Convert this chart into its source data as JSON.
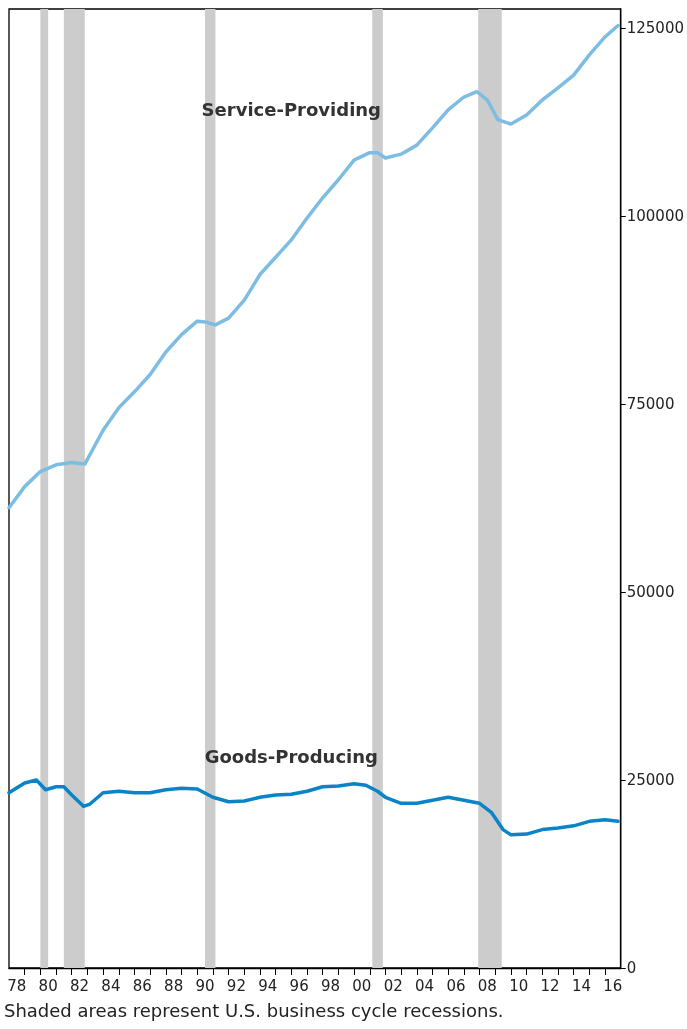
{
  "chart_data": {
    "type": "line",
    "annotations": [
      "Shaded areas represent U.S. business cycle recessions."
    ],
    "xlim": [
      "1978-01",
      "2017-01"
    ],
    "xticks": [
      {
        "value": "1978-07",
        "label": "78"
      },
      {
        "value": "1980-07",
        "label": "80"
      },
      {
        "value": "1982-07",
        "label": "82"
      },
      {
        "value": "1984-07",
        "label": "84"
      },
      {
        "value": "1986-07",
        "label": "86"
      },
      {
        "value": "1988-07",
        "label": "88"
      },
      {
        "value": "1990-07",
        "label": "90"
      },
      {
        "value": "1992-07",
        "label": "92"
      },
      {
        "value": "1994-07",
        "label": "94"
      },
      {
        "value": "1996-07",
        "label": "96"
      },
      {
        "value": "1998-07",
        "label": "98"
      },
      {
        "value": "2000-07",
        "label": "00"
      },
      {
        "value": "2002-07",
        "label": "02"
      },
      {
        "value": "2004-07",
        "label": "04"
      },
      {
        "value": "2006-07",
        "label": "06"
      },
      {
        "value": "2008-07",
        "label": "08"
      },
      {
        "value": "2010-07",
        "label": "10"
      },
      {
        "value": "2012-07",
        "label": "12"
      },
      {
        "value": "2014-07",
        "label": "14"
      },
      {
        "value": "2016-07",
        "label": "16"
      },
      {
        "value": "1979-01",
        "label": null
      },
      {
        "value": "1980-01",
        "label": null
      },
      {
        "value": "1981-01",
        "label": null
      },
      {
        "value": "1982-01",
        "label": null
      },
      {
        "value": "1983-01",
        "label": null
      },
      {
        "value": "1984-01",
        "label": null
      },
      {
        "value": "1985-01",
        "label": null
      },
      {
        "value": "1986-01",
        "label": null
      },
      {
        "value": "1987-01",
        "label": null
      },
      {
        "value": "1988-01",
        "label": null
      },
      {
        "value": "1989-01",
        "label": null
      },
      {
        "value": "1990-01",
        "label": null
      },
      {
        "value": "1991-01",
        "label": null
      },
      {
        "value": "1992-01",
        "label": null
      },
      {
        "value": "1993-01",
        "label": null
      },
      {
        "value": "1994-01",
        "label": null
      },
      {
        "value": "1995-01",
        "label": null
      },
      {
        "value": "1996-01",
        "label": null
      },
      {
        "value": "1997-01",
        "label": null
      },
      {
        "value": "1998-01",
        "label": null
      },
      {
        "value": "1999-01",
        "label": null
      },
      {
        "value": "2000-01",
        "label": null
      },
      {
        "value": "2001-01",
        "label": null
      },
      {
        "value": "2002-01",
        "label": null
      },
      {
        "value": "2003-01",
        "label": null
      },
      {
        "value": "2004-01",
        "label": null
      },
      {
        "value": "2005-01",
        "label": null
      },
      {
        "value": "2006-01",
        "label": null
      },
      {
        "value": "2007-01",
        "label": null
      },
      {
        "value": "2008-01",
        "label": null
      },
      {
        "value": "2009-01",
        "label": null
      },
      {
        "value": "2010-01",
        "label": null
      },
      {
        "value": "2011-01",
        "label": null
      },
      {
        "value": "2012-01",
        "label": null
      },
      {
        "value": "2013-01",
        "label": null
      },
      {
        "value": "2014-01",
        "label": null
      },
      {
        "value": "2015-01",
        "label": null
      },
      {
        "value": "2016-01",
        "label": null
      }
    ],
    "ylim": [
      0,
      127500
    ],
    "yticks": [
      0,
      25000,
      50000,
      75000,
      100000,
      125000
    ],
    "grid": false,
    "legend": false,
    "marker": "none",
    "line_style": "solid",
    "bands": [
      {
        "axis": "x",
        "from": "1980-01",
        "to": "1980-07",
        "color": "#cccccc"
      },
      {
        "axis": "x",
        "from": "1981-07",
        "to": "1982-11",
        "color": "#cccccc"
      },
      {
        "axis": "x",
        "from": "1990-07",
        "to": "1991-03",
        "color": "#cccccc"
      },
      {
        "axis": "x",
        "from": "2001-03",
        "to": "2001-11",
        "color": "#cccccc"
      },
      {
        "axis": "x",
        "from": "2007-12",
        "to": "2009-06",
        "color": "#cccccc"
      }
    ],
    "series": [
      {
        "name": "Service-Providing",
        "color": "#7dbde3",
        "x": [
          "1978-01",
          "1979-01",
          "1980-01",
          "1981-01",
          "1982-01",
          "1982-11",
          "1984-01",
          "1985-01",
          "1986-01",
          "1987-01",
          "1988-01",
          "1989-01",
          "1990-01",
          "1990-07",
          "1991-03",
          "1992-01",
          "1993-01",
          "1994-01",
          "1995-01",
          "1996-01",
          "1997-01",
          "1998-01",
          "1999-01",
          "2000-01",
          "2001-01",
          "2001-07",
          "2002-01",
          "2003-01",
          "2004-01",
          "2005-01",
          "2006-01",
          "2007-01",
          "2007-11",
          "2008-07",
          "2009-03",
          "2010-01",
          "2011-01",
          "2012-01",
          "2013-01",
          "2014-01",
          "2015-01",
          "2016-01",
          "2016-11"
        ],
        "values": [
          61200,
          64000,
          66000,
          66900,
          67200,
          67000,
          71500,
          74500,
          76600,
          78900,
          81900,
          84200,
          86000,
          85900,
          85500,
          86400,
          88800,
          92200,
          94500,
          96800,
          99700,
          102400,
          104800,
          107400,
          108400,
          108400,
          107700,
          108200,
          109400,
          111700,
          114100,
          115800,
          116500,
          115400,
          112800,
          112200,
          113400,
          115400,
          117000,
          118700,
          121400,
          123800,
          125300
        ]
      },
      {
        "name": "Goods-Producing",
        "color": "#0a84c6",
        "x": [
          "1978-01",
          "1979-01",
          "1979-10",
          "1980-05",
          "1981-01",
          "1981-07",
          "1982-01",
          "1982-10",
          "1983-03",
          "1984-01",
          "1985-01",
          "1986-01",
          "1987-01",
          "1988-01",
          "1989-01",
          "1990-01",
          "1991-01",
          "1992-01",
          "1993-01",
          "1994-01",
          "1995-01",
          "1996-01",
          "1997-01",
          "1998-01",
          "1999-01",
          "2000-01",
          "2000-10",
          "2001-07",
          "2002-01",
          "2003-01",
          "2004-01",
          "2005-01",
          "2006-01",
          "2007-01",
          "2008-01",
          "2008-10",
          "2009-07",
          "2010-01",
          "2011-01",
          "2012-01",
          "2013-01",
          "2014-01",
          "2015-01",
          "2016-01",
          "2016-11"
        ],
        "values": [
          23300,
          24600,
          25000,
          23700,
          24100,
          24100,
          23000,
          21500,
          21800,
          23300,
          23500,
          23300,
          23300,
          23700,
          23900,
          23800,
          22700,
          22100,
          22200,
          22700,
          23000,
          23100,
          23500,
          24100,
          24200,
          24500,
          24300,
          23500,
          22700,
          21900,
          21900,
          22300,
          22700,
          22300,
          21900,
          20700,
          18400,
          17700,
          17800,
          18400,
          18600,
          18900,
          19500,
          19700,
          19500
        ]
      }
    ]
  }
}
